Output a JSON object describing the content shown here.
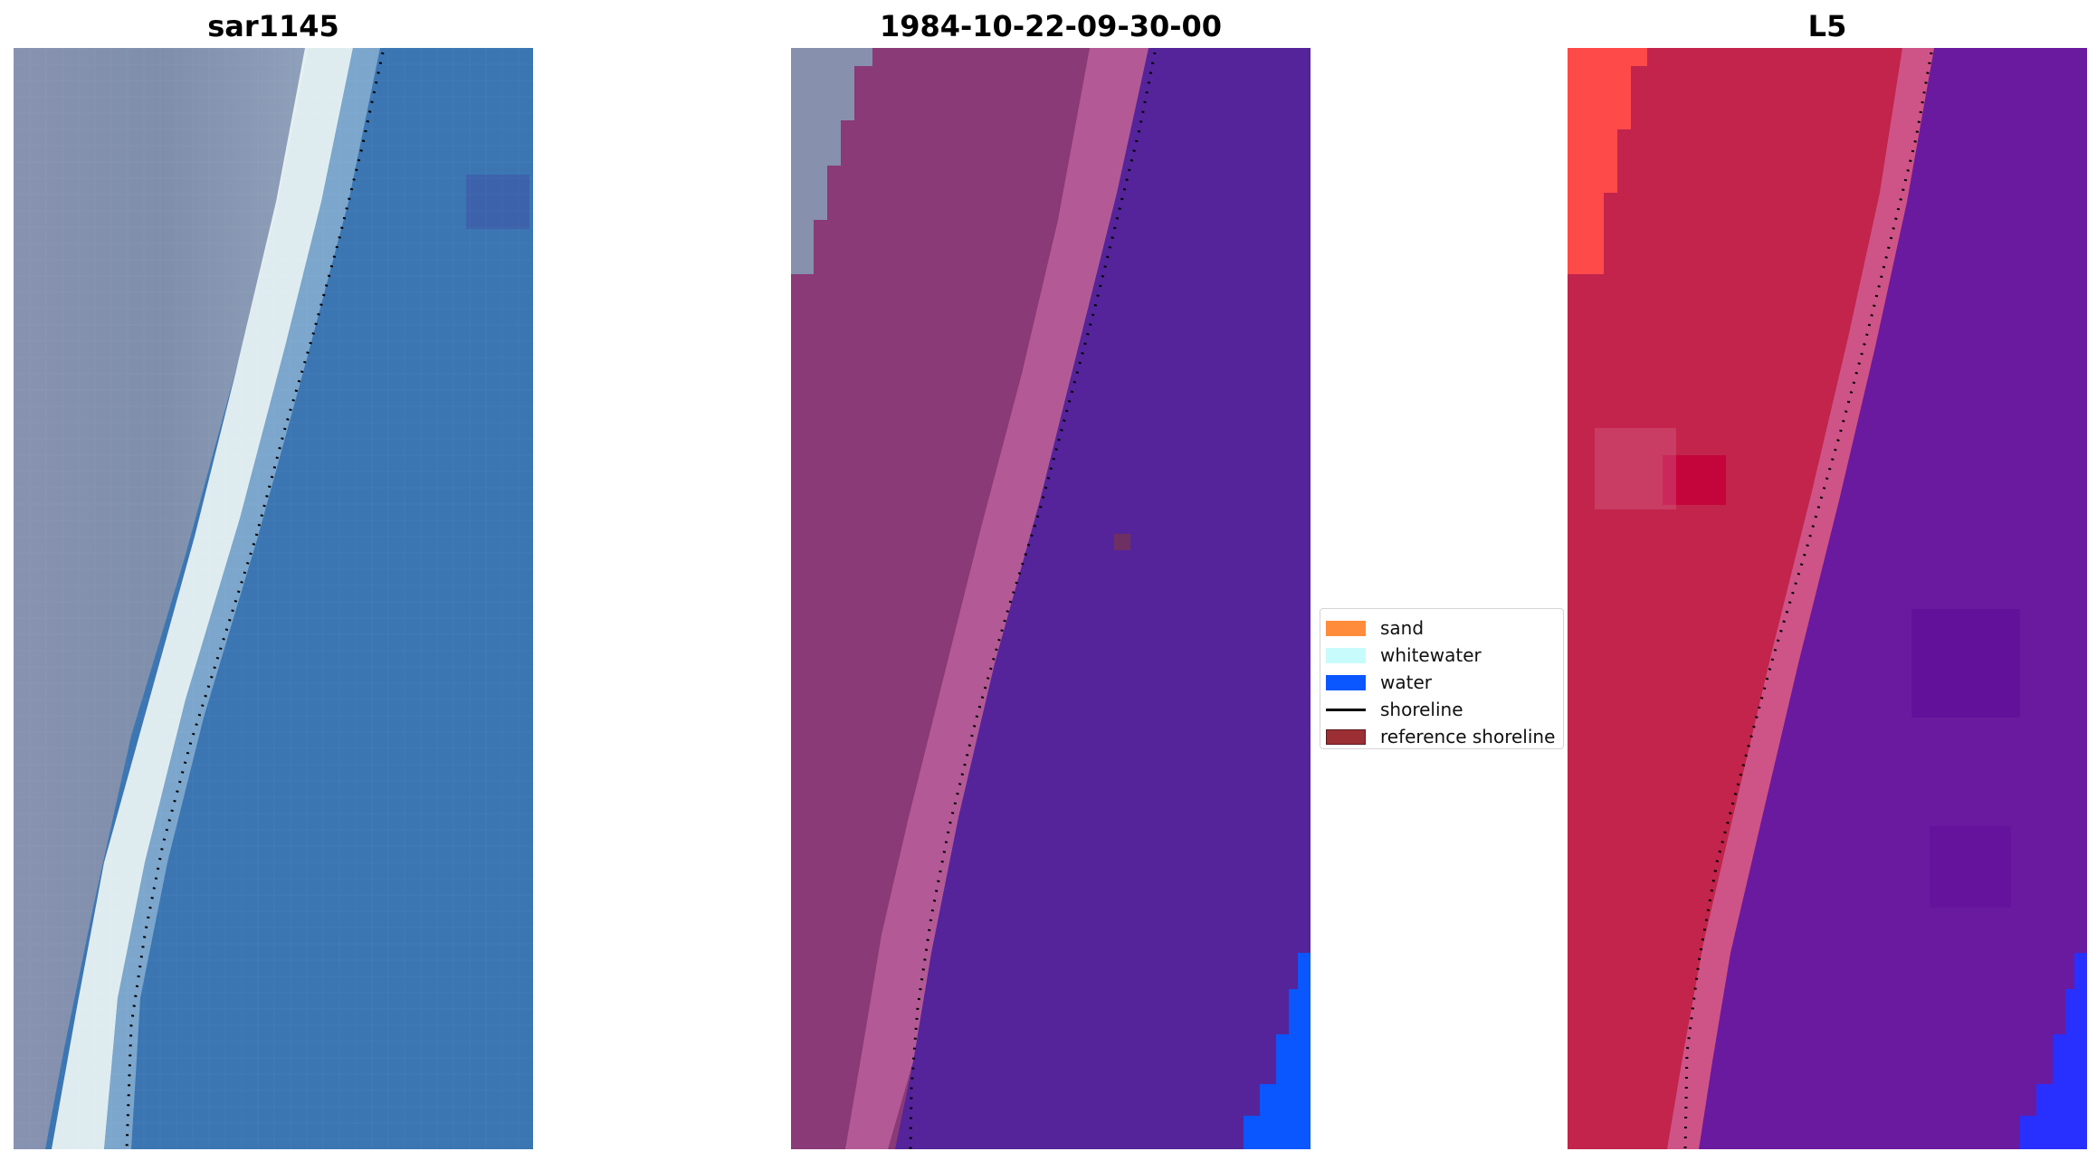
{
  "panels": [
    {
      "title": "sar1145"
    },
    {
      "title": "1984-10-22-09-30-00"
    },
    {
      "title": "L5"
    }
  ],
  "legend": {
    "items": [
      {
        "label": "sand",
        "color": "#ff8c3a"
      },
      {
        "label": "whitewater",
        "color": "#c8fbfb"
      },
      {
        "label": "water",
        "color": "#0a56ff"
      },
      {
        "label": "shoreline",
        "color": "#000000"
      },
      {
        "label": "reference shoreline",
        "color": "#9b2f34"
      }
    ]
  },
  "colors": {
    "rgb_land": "#8a96b2",
    "rgb_water": "#3b76b2",
    "rgb_whitewater": "#f2f8f6",
    "class_land": "#8a3a76",
    "class_band": "#b25a95",
    "class_water": "#55249a",
    "class_water_pixels": "#0a56ff",
    "index_land": "#c2244c",
    "index_band": "#d46f9c",
    "index_water": "#6a18a0",
    "index_red_patch": "#ff4848"
  }
}
